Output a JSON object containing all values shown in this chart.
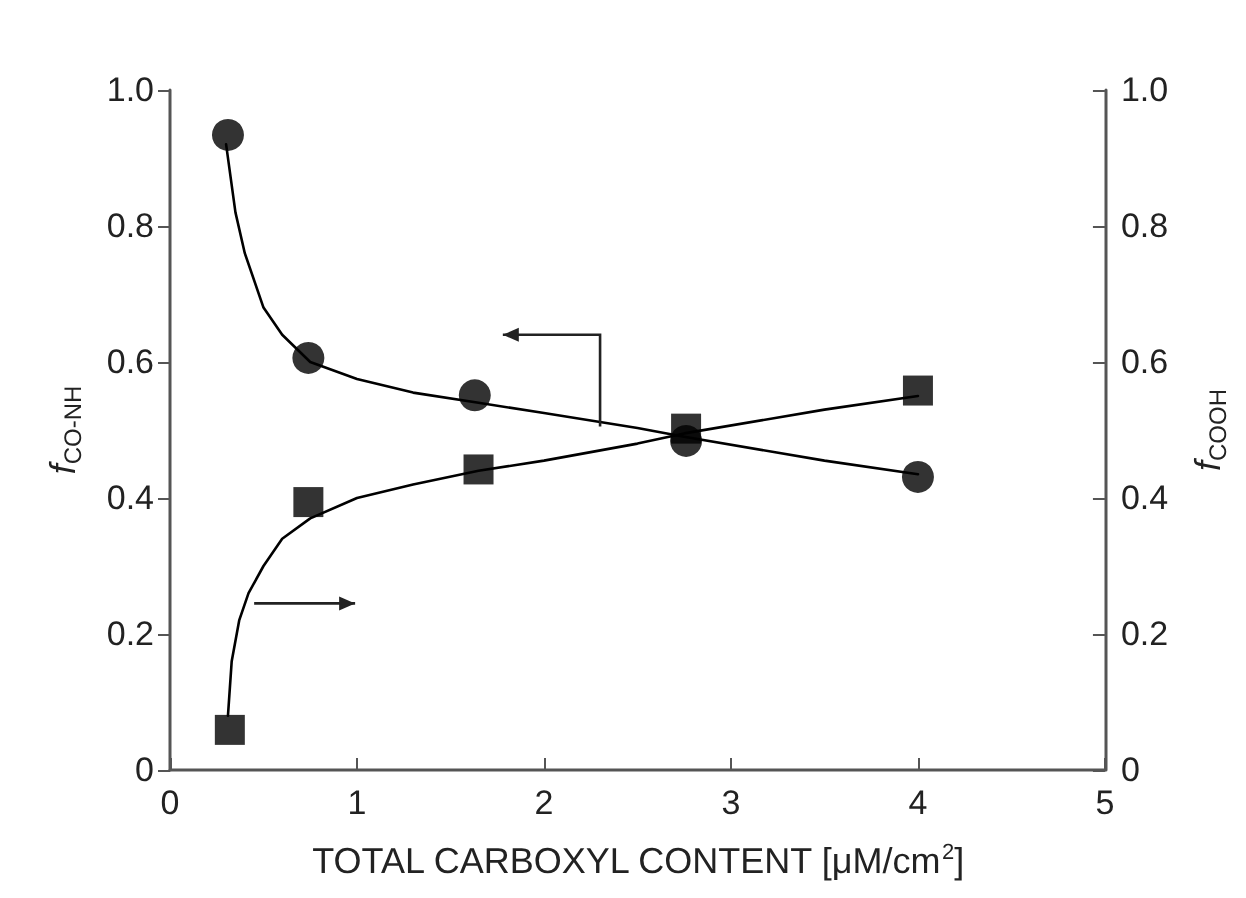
{
  "chart_data": {
    "type": "scatter",
    "xlabel": "TOTAL CARBOXYL CONTENT [μM/cm$^{2}$]",
    "ylabel": "f$_{CO-NH}$",
    "y2label": "f$_{COOH}$",
    "xlim": [
      0,
      5
    ],
    "xticks": [
      0,
      1,
      2,
      3,
      4,
      5
    ],
    "ylim": [
      0,
      1
    ],
    "yticks": [
      0,
      0.2,
      0.4,
      0.6,
      0.8,
      {
        "value": 1,
        "label": "1.0"
      }
    ],
    "y2lim": [
      0,
      1
    ],
    "y2ticks": [
      0,
      0.2,
      0.4,
      0.6,
      0.8,
      {
        "value": 1,
        "label": "1.0"
      }
    ],
    "grid": false,
    "series": [
      {
        "marker": "circle",
        "color": "#000000",
        "x": [
          0.31,
          0.74,
          1.63,
          2.76,
          4.0
        ],
        "values": [
          0.934,
          0.606,
          0.551,
          0.484,
          0.431
        ]
      },
      {
        "marker": "square",
        "color": "#000000",
        "axis": "y2",
        "x": [
          0.32,
          0.74,
          1.65,
          2.76,
          4.0
        ],
        "values": [
          0.059,
          0.394,
          0.442,
          0.502,
          0.558
        ]
      },
      {
        "type": "line",
        "marker": "none",
        "color": "#000000",
        "x": [
          0.3,
          0.35,
          0.4,
          0.5,
          0.6,
          0.75,
          1.0,
          1.3,
          1.65,
          2.0,
          2.5,
          2.75,
          3.5,
          4.0
        ],
        "values": [
          0.92,
          0.82,
          0.76,
          0.68,
          0.64,
          0.6,
          0.575,
          0.555,
          0.54,
          0.525,
          0.503,
          0.49,
          0.455,
          0.435
        ]
      },
      {
        "type": "line",
        "marker": "none",
        "color": "#000000",
        "axis": "y2",
        "x": [
          0.31,
          0.33,
          0.37,
          0.42,
          0.5,
          0.6,
          0.75,
          1.0,
          1.3,
          1.65,
          2.0,
          2.5,
          2.75,
          3.5,
          4.0
        ],
        "values": [
          0.08,
          0.16,
          0.22,
          0.26,
          0.3,
          0.34,
          0.37,
          0.4,
          0.42,
          0.44,
          0.455,
          0.48,
          0.495,
          0.53,
          0.55
        ]
      }
    ]
  }
}
